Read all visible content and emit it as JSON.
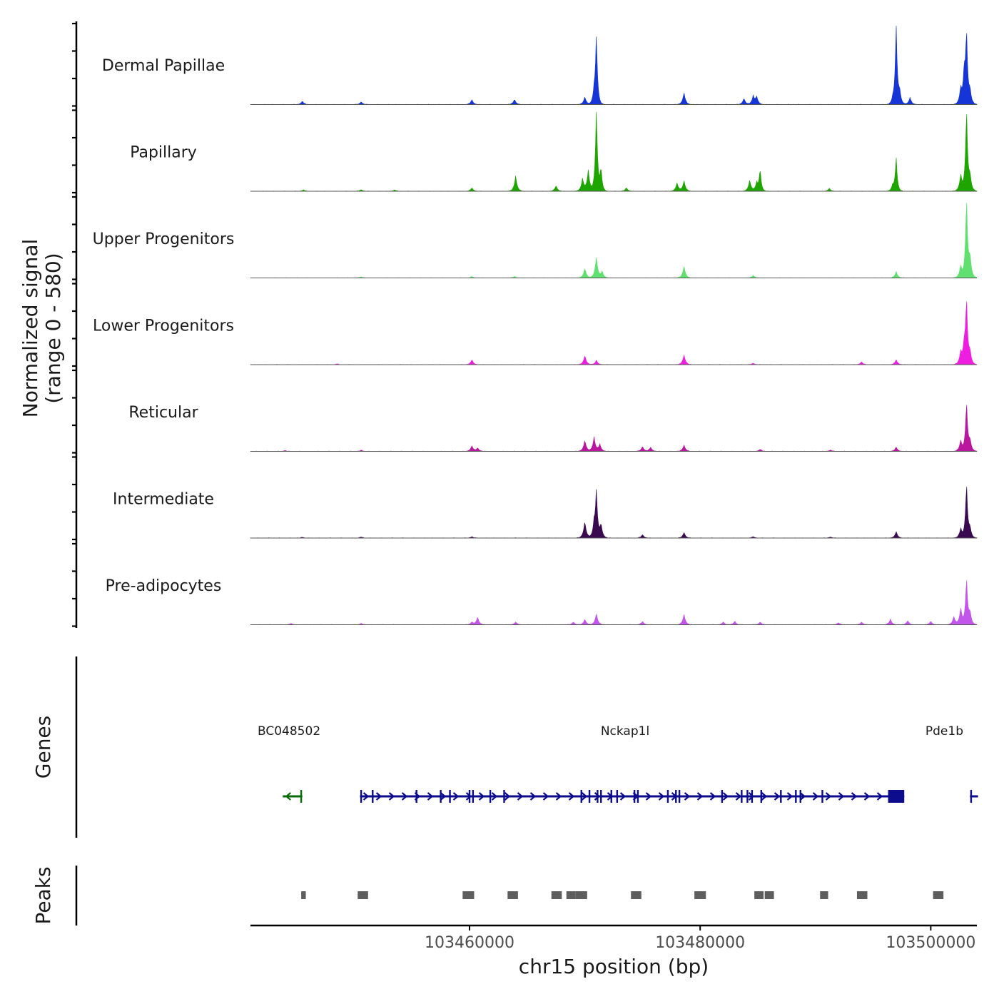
{
  "chart_data": {
    "type": "area",
    "ylabel_line1": "Normalized signal",
    "ylabel_line2": "(range 0 - 580)",
    "ylim": [
      0,
      580
    ],
    "xlabel": "chr15 position (bp)",
    "xlim": [
      103441000,
      103504000
    ],
    "x_ticks": [
      103460000,
      103480000,
      103500000
    ],
    "x_tick_labels": [
      "103460000",
      "103480000",
      "103500000"
    ],
    "tracks": [
      {
        "name": "Dermal Papillae",
        "color": "#1535d6",
        "peaks": [
          [
            103445500,
            25
          ],
          [
            103450600,
            20
          ],
          [
            103460200,
            35
          ],
          [
            103463900,
            38
          ],
          [
            103470000,
            55
          ],
          [
            103470800,
            70
          ],
          [
            103471000,
            500
          ],
          [
            103478600,
            85
          ],
          [
            103483800,
            45
          ],
          [
            103484600,
            60
          ],
          [
            103484900,
            55
          ],
          [
            103496700,
            35
          ],
          [
            103497000,
            560
          ],
          [
            103497300,
            90
          ],
          [
            103498200,
            50
          ],
          [
            103502600,
            120
          ],
          [
            103502900,
            220
          ],
          [
            103503100,
            520
          ],
          [
            103503400,
            100
          ]
        ]
      },
      {
        "name": "Papillary",
        "color": "#1ea500",
        "peaks": [
          [
            103445600,
            10
          ],
          [
            103450600,
            12
          ],
          [
            103453500,
            10
          ],
          [
            103460200,
            25
          ],
          [
            103464000,
            110
          ],
          [
            103467500,
            40
          ],
          [
            103469800,
            90
          ],
          [
            103470300,
            150
          ],
          [
            103471000,
            600
          ],
          [
            103471400,
            170
          ],
          [
            103473600,
            25
          ],
          [
            103478000,
            60
          ],
          [
            103478600,
            75
          ],
          [
            103484300,
            80
          ],
          [
            103484900,
            60
          ],
          [
            103485200,
            160
          ],
          [
            103491200,
            20
          ],
          [
            103496700,
            40
          ],
          [
            103497000,
            240
          ],
          [
            103502600,
            120
          ],
          [
            103503100,
            600
          ],
          [
            103503400,
            110
          ]
        ]
      },
      {
        "name": "Upper Progenitors",
        "color": "#5fe070",
        "peaks": [
          [
            103450600,
            8
          ],
          [
            103460200,
            10
          ],
          [
            103463900,
            10
          ],
          [
            103470000,
            70
          ],
          [
            103471000,
            150
          ],
          [
            103471500,
            45
          ],
          [
            103478600,
            85
          ],
          [
            103484600,
            18
          ],
          [
            103497000,
            45
          ],
          [
            103502600,
            90
          ],
          [
            103503100,
            580
          ],
          [
            103503400,
            150
          ]
        ]
      },
      {
        "name": "Lower Progenitors",
        "color": "#ee1ee0",
        "peaks": [
          [
            103448500,
            6
          ],
          [
            103460200,
            35
          ],
          [
            103470000,
            65
          ],
          [
            103471000,
            30
          ],
          [
            103478600,
            70
          ],
          [
            103484600,
            10
          ],
          [
            103494000,
            20
          ],
          [
            103497000,
            35
          ],
          [
            103502600,
            90
          ],
          [
            103502900,
            120
          ],
          [
            103503100,
            460
          ],
          [
            103503400,
            90
          ]
        ]
      },
      {
        "name": "Reticular",
        "color": "#b8179e",
        "peaks": [
          [
            103444000,
            6
          ],
          [
            103450600,
            8
          ],
          [
            103460200,
            40
          ],
          [
            103460700,
            25
          ],
          [
            103470000,
            80
          ],
          [
            103470800,
            100
          ],
          [
            103471300,
            50
          ],
          [
            103475000,
            35
          ],
          [
            103475700,
            30
          ],
          [
            103478600,
            45
          ],
          [
            103485200,
            15
          ],
          [
            103491300,
            10
          ],
          [
            103497000,
            30
          ],
          [
            103502600,
            80
          ],
          [
            103503100,
            360
          ],
          [
            103503400,
            80
          ]
        ]
      },
      {
        "name": "Intermediate",
        "color": "#3a0a50",
        "peaks": [
          [
            103445500,
            6
          ],
          [
            103450600,
            8
          ],
          [
            103460200,
            10
          ],
          [
            103470000,
            120
          ],
          [
            103470800,
            90
          ],
          [
            103471000,
            340
          ],
          [
            103471400,
            100
          ],
          [
            103475000,
            25
          ],
          [
            103478600,
            40
          ],
          [
            103484600,
            10
          ],
          [
            103491300,
            8
          ],
          [
            103497000,
            45
          ],
          [
            103502600,
            70
          ],
          [
            103503100,
            400
          ],
          [
            103503400,
            70
          ]
        ]
      },
      {
        "name": "Pre-adipocytes",
        "color": "#c356ea",
        "peaks": [
          [
            103444500,
            10
          ],
          [
            103450600,
            10
          ],
          [
            103460200,
            20
          ],
          [
            103460700,
            55
          ],
          [
            103464000,
            20
          ],
          [
            103469000,
            20
          ],
          [
            103470000,
            40
          ],
          [
            103471000,
            80
          ],
          [
            103475000,
            25
          ],
          [
            103478600,
            75
          ],
          [
            103482000,
            20
          ],
          [
            103483000,
            25
          ],
          [
            103485200,
            20
          ],
          [
            103492000,
            15
          ],
          [
            103494000,
            20
          ],
          [
            103496500,
            40
          ],
          [
            103498000,
            30
          ],
          [
            103500000,
            25
          ],
          [
            103502000,
            60
          ],
          [
            103502600,
            120
          ],
          [
            103503100,
            340
          ],
          [
            103503400,
            90
          ]
        ]
      }
    ],
    "genes_label": "Genes",
    "genes": [
      {
        "name": "BC048502",
        "strand": "-",
        "start": 103443800,
        "end": 103445500,
        "color": "#0b6b0b",
        "exons": [
          103445400
        ]
      },
      {
        "name": "Nckap1l",
        "strand": "+",
        "start": 103450500,
        "end": 103497700,
        "color": "#0c0c8c",
        "exons": [
          103450600,
          103451600,
          103455400,
          103457500,
          103458300,
          103460000,
          103460300,
          103461800,
          103463000,
          103469700,
          103470400,
          103471100,
          103471400,
          103472300,
          103472800,
          103474300,
          103474600,
          103477200,
          103477900,
          103478200,
          103481900,
          103483600,
          103484100,
          103484500,
          103485300,
          103487000,
          103488300,
          103488700,
          103490600
        ],
        "cds_block": [
          103496300,
          103497700
        ]
      },
      {
        "name": "Pde1b",
        "strand": "+",
        "start": 103503400,
        "end": 103504100,
        "color": "#0c0c8c",
        "exons": [
          103503500
        ]
      }
    ],
    "peaks_label": "Peaks",
    "peak_regions": [
      [
        103445400,
        103445800
      ],
      [
        103450300,
        103451200
      ],
      [
        103459400,
        103460400
      ],
      [
        103463300,
        103464200
      ],
      [
        103467100,
        103468000
      ],
      [
        103468400,
        103469200
      ],
      [
        103469200,
        103470200
      ],
      [
        103474000,
        103474900
      ],
      [
        103479500,
        103480500
      ],
      [
        103484700,
        103485500
      ],
      [
        103485600,
        103486400
      ],
      [
        103490400,
        103491100
      ],
      [
        103493600,
        103494500
      ],
      [
        103500200,
        103501100
      ]
    ]
  }
}
